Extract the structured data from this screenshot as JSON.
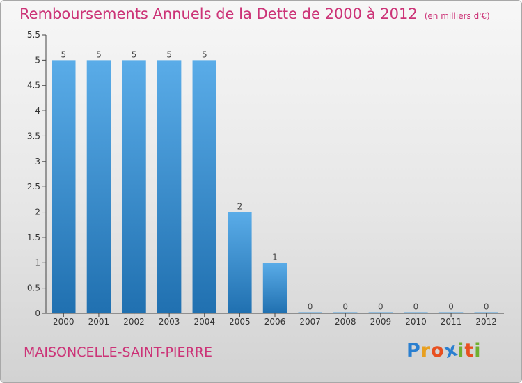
{
  "title": "Remboursements Annuels de la Dette de 2000 à 2012",
  "unit": "(en milliers d'€)",
  "commune": "MAISONCELLE-SAINT-PIERRE",
  "logo": {
    "text": "Proxiti",
    "letter_colors": [
      "#2a7fd0",
      "#e8a020",
      "#e85020",
      "#2a7fd0",
      "#70b030",
      "#e85020",
      "#70b030"
    ]
  },
  "colors": {
    "bar_top": "#5aace8",
    "bar_bottom": "#2070b0",
    "title": "#cc3377"
  },
  "chart_data": {
    "type": "bar",
    "categories": [
      "2000",
      "2001",
      "2002",
      "2003",
      "2004",
      "2005",
      "2006",
      "2007",
      "2008",
      "2009",
      "2010",
      "2011",
      "2012"
    ],
    "values": [
      5,
      5,
      5,
      5,
      5,
      2,
      1,
      0,
      0,
      0,
      0,
      0,
      0
    ],
    "value_labels": [
      "5",
      "5",
      "5",
      "5",
      "5",
      "2",
      "1",
      "0",
      "0",
      "0",
      "0",
      "0",
      "0"
    ],
    "yticks": [
      "0",
      "0.5",
      "1",
      "1.5",
      "2",
      "2.5",
      "3",
      "3.5",
      "4",
      "4.5",
      "5",
      "5.5"
    ],
    "ylim": [
      0,
      5.5
    ],
    "grid": false,
    "legend": "none"
  }
}
